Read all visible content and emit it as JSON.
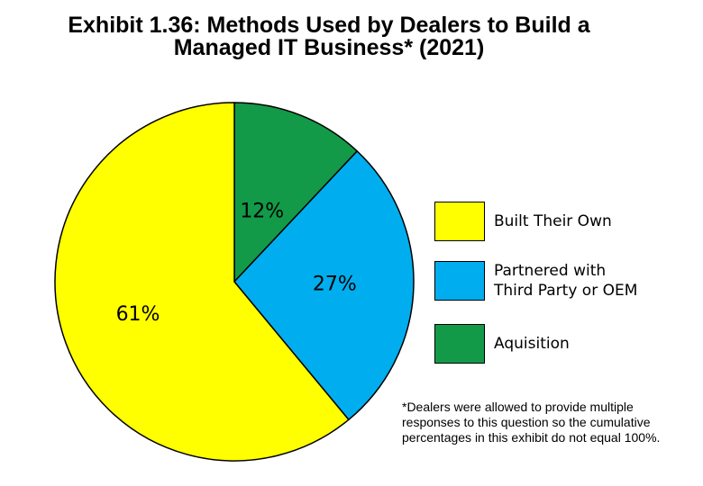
{
  "chart_data": {
    "type": "pie",
    "title": [
      "Exhibit 1.36: Methods Used by Dealers to Build a",
      "Managed IT Business* (2021)"
    ],
    "slices": [
      {
        "label": "Aquisition",
        "value": 12,
        "display": "12%",
        "color": "#139a48"
      },
      {
        "label": "Partnered with\nThird Party or OEM",
        "value": 27,
        "display": "27%",
        "color": "#00aeef"
      },
      {
        "label": "Built Their Own",
        "value": 61,
        "display": "61%",
        "color": "#ffff00"
      }
    ],
    "legend_order": [
      "Built Their Own",
      "Partnered with\nThird Party or OEM",
      "Aquisition"
    ],
    "legend_placement": "right",
    "footnote": "*Dealers were allowed to provide multiple responses to this question so the cumulative percentages in this exhibit do not equal 100%."
  }
}
